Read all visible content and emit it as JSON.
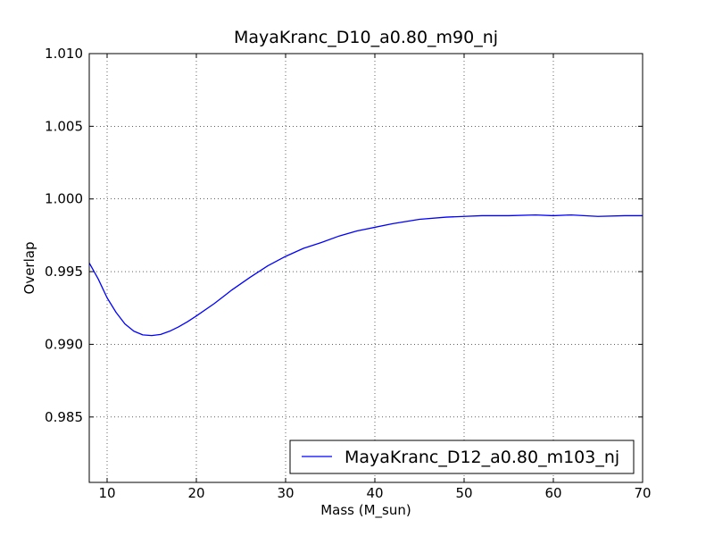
{
  "chart_data": {
    "type": "line",
    "title": "MayaKranc_D10_a0.80_m90_nj",
    "xlabel": "Mass (M_sun)",
    "ylabel": "Overlap",
    "xlim": [
      8,
      70
    ],
    "ylim": [
      0.9805,
      1.01
    ],
    "xticks": [
      10,
      20,
      30,
      40,
      50,
      60,
      70
    ],
    "xtick_labels": [
      "10",
      "20",
      "30",
      "40",
      "50",
      "60",
      "70"
    ],
    "yticks": [
      0.985,
      0.99,
      0.995,
      1.0,
      1.005,
      1.01
    ],
    "ytick_labels": [
      "0.985",
      "0.990",
      "0.995",
      "1.000",
      "1.005",
      "1.010"
    ],
    "grid": true,
    "legend_position": "bottom-right",
    "series": [
      {
        "name": "MayaKranc_D12_a0.80_m103_nj",
        "color": "#0000ff",
        "x": [
          8,
          9,
          10,
          11,
          12,
          13,
          14,
          15,
          16,
          17,
          18,
          19,
          20,
          22,
          24,
          26,
          28,
          30,
          32,
          34,
          36,
          38,
          40,
          42,
          45,
          48,
          50,
          52,
          55,
          58,
          60,
          62,
          65,
          68,
          70
        ],
        "y": [
          0.9956,
          0.9945,
          0.9932,
          0.9922,
          0.9914,
          0.9909,
          0.99065,
          0.9906,
          0.99068,
          0.9909,
          0.9912,
          0.99155,
          0.99195,
          0.9928,
          0.99375,
          0.9946,
          0.9954,
          0.99605,
          0.9966,
          0.997,
          0.99745,
          0.9978,
          0.99805,
          0.9983,
          0.9986,
          0.99875,
          0.9988,
          0.99885,
          0.99885,
          0.9989,
          0.99885,
          0.9989,
          0.9988,
          0.99885,
          0.99885
        ]
      }
    ]
  }
}
